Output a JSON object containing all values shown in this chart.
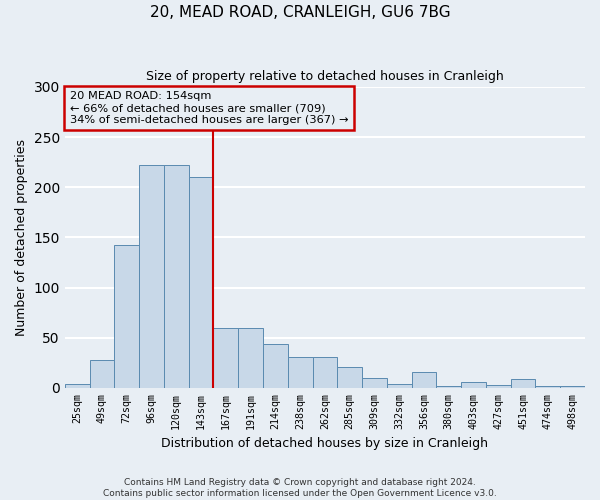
{
  "title": "20, MEAD ROAD, CRANLEIGH, GU6 7BG",
  "subtitle": "Size of property relative to detached houses in Cranleigh",
  "xlabel": "Distribution of detached houses by size in Cranleigh",
  "ylabel": "Number of detached properties",
  "bar_labels": [
    "25sqm",
    "49sqm",
    "72sqm",
    "96sqm",
    "120sqm",
    "143sqm",
    "167sqm",
    "191sqm",
    "214sqm",
    "238sqm",
    "262sqm",
    "285sqm",
    "309sqm",
    "332sqm",
    "356sqm",
    "380sqm",
    "403sqm",
    "427sqm",
    "451sqm",
    "474sqm",
    "498sqm"
  ],
  "bar_values": [
    4,
    28,
    142,
    222,
    222,
    210,
    60,
    60,
    44,
    31,
    31,
    21,
    10,
    4,
    16,
    2,
    6,
    3,
    9,
    2,
    2
  ],
  "bar_color": "#c8d8e8",
  "bar_edge_color": "#5a8ab0",
  "vline_x_index": 6,
  "vline_color": "#cc0000",
  "annotation_title": "20 MEAD ROAD: 154sqm",
  "annotation_line1": "← 66% of detached houses are smaller (709)",
  "annotation_line2": "34% of semi-detached houses are larger (367) →",
  "annotation_box_color": "#cc0000",
  "ylim": [
    0,
    300
  ],
  "yticks": [
    0,
    50,
    100,
    150,
    200,
    250,
    300
  ],
  "footer_line1": "Contains HM Land Registry data © Crown copyright and database right 2024.",
  "footer_line2": "Contains public sector information licensed under the Open Government Licence v3.0.",
  "background_color": "#e8eef4",
  "grid_color": "#ffffff"
}
